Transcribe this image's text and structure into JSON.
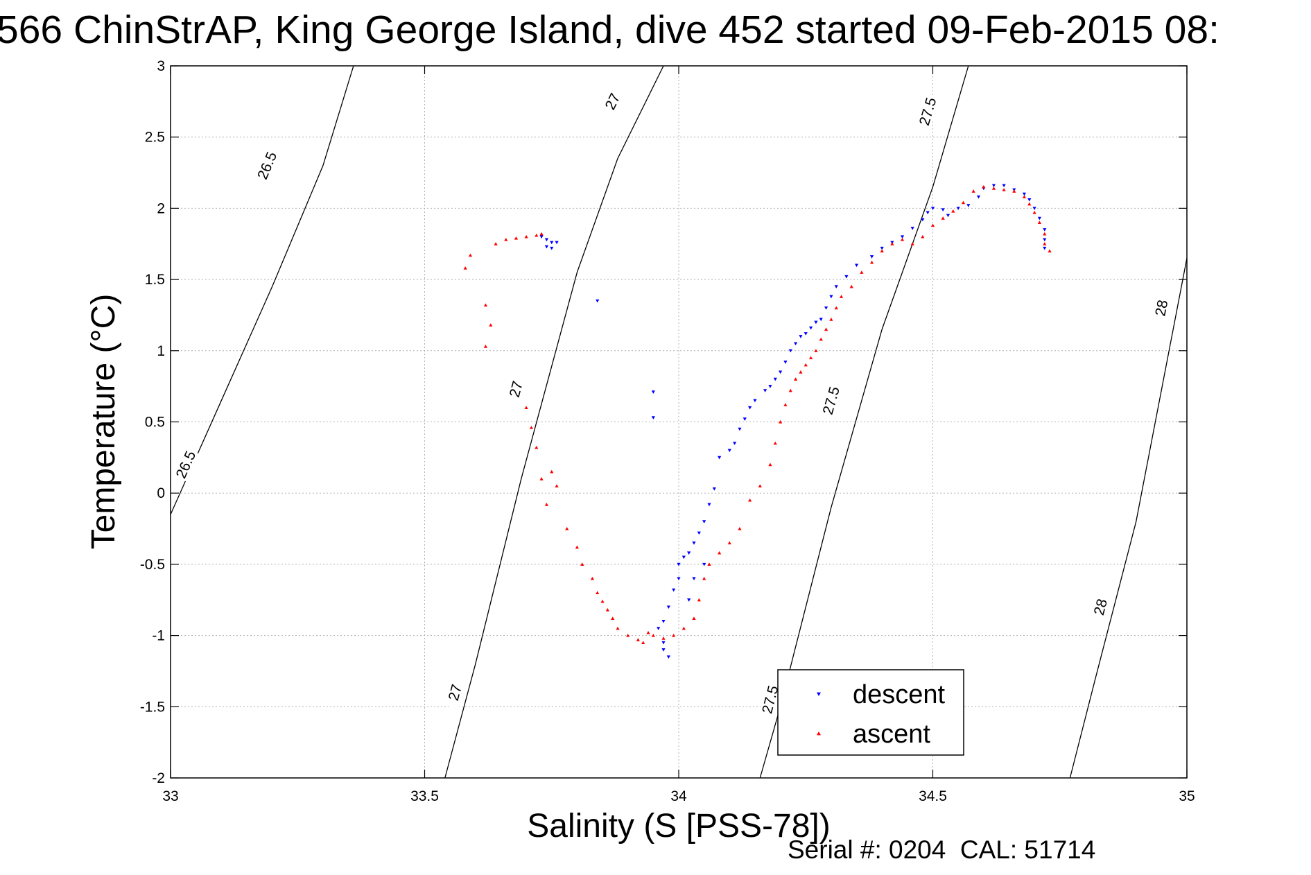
{
  "chart_data": {
    "type": "scatter",
    "title": "566 ChinStrAP, King George Island, dive 452 started 09-Feb-2015 08:",
    "xlabel": "Salinity (S [PSS-78])",
    "ylabel": "Temperature (°C)",
    "xlim": [
      33,
      35
    ],
    "ylim": [
      -2,
      3
    ],
    "x_ticks": [
      "33",
      "33.5",
      "34",
      "34.5",
      "35"
    ],
    "y_ticks": [
      "-2",
      "-1.5",
      "-1",
      "-0.5",
      "0",
      "0.5",
      "1",
      "1.5",
      "2",
      "2.5",
      "3"
    ],
    "grid": true,
    "legend_position": "lower-right",
    "footer": "Serial #: 0204  CAL: 51714",
    "density_contours": [
      {
        "label": "26.5",
        "points": [
          [
            33.0,
            -0.15
          ],
          [
            33.1,
            0.65
          ],
          [
            33.2,
            1.45
          ],
          [
            33.3,
            2.3
          ],
          [
            33.36,
            3.0
          ]
        ],
        "label_points": [
          [
            33.03,
            0.2
          ],
          [
            33.19,
            2.3
          ]
        ]
      },
      {
        "label": "27",
        "points": [
          [
            33.54,
            -2.0
          ],
          [
            33.6,
            -1.2
          ],
          [
            33.69,
            0.1
          ],
          [
            33.8,
            1.55
          ],
          [
            33.88,
            2.35
          ],
          [
            33.97,
            3.0
          ]
        ],
        "label_points": [
          [
            33.56,
            -1.4
          ],
          [
            33.68,
            0.73
          ],
          [
            33.87,
            2.75
          ]
        ]
      },
      {
        "label": "27.5",
        "points": [
          [
            34.16,
            -2.0
          ],
          [
            34.2,
            -1.5
          ],
          [
            34.3,
            -0.1
          ],
          [
            34.4,
            1.15
          ],
          [
            34.5,
            2.15
          ],
          [
            34.57,
            3.0
          ]
        ],
        "label_points": [
          [
            34.18,
            -1.45
          ],
          [
            34.3,
            0.65
          ],
          [
            34.49,
            2.68
          ]
        ]
      },
      {
        "label": "28",
        "points": [
          [
            34.77,
            -2.0
          ],
          [
            34.82,
            -1.3
          ],
          [
            34.9,
            -0.2
          ],
          [
            35.0,
            1.65
          ]
        ],
        "label_points": [
          [
            34.83,
            -0.8
          ],
          [
            34.95,
            1.3
          ]
        ]
      }
    ],
    "series": [
      {
        "name": "descent",
        "color": "#0000ff",
        "marker": "triangle-down",
        "points": [
          [
            33.73,
            1.8
          ],
          [
            33.74,
            1.78
          ],
          [
            33.75,
            1.76
          ],
          [
            33.74,
            1.73
          ],
          [
            33.75,
            1.72
          ],
          [
            33.76,
            1.76
          ],
          [
            33.84,
            1.35
          ],
          [
            33.95,
            0.71
          ],
          [
            33.95,
            0.53
          ],
          [
            33.96,
            -0.95
          ],
          [
            33.97,
            -1.05
          ],
          [
            33.98,
            -1.15
          ],
          [
            33.97,
            -1.1
          ],
          [
            33.97,
            -0.9
          ],
          [
            33.98,
            -0.8
          ],
          [
            33.99,
            -0.68
          ],
          [
            34.0,
            -0.6
          ],
          [
            34.0,
            -0.5
          ],
          [
            34.01,
            -0.45
          ],
          [
            34.02,
            -0.42
          ],
          [
            34.03,
            -0.35
          ],
          [
            34.04,
            -0.28
          ],
          [
            34.05,
            -0.2
          ],
          [
            34.06,
            -0.08
          ],
          [
            34.07,
            0.03
          ],
          [
            34.02,
            -0.75
          ],
          [
            34.03,
            -0.6
          ],
          [
            34.05,
            -0.5
          ],
          [
            34.08,
            0.25
          ],
          [
            34.1,
            0.3
          ],
          [
            34.11,
            0.35
          ],
          [
            34.12,
            0.45
          ],
          [
            34.13,
            0.52
          ],
          [
            34.14,
            0.6
          ],
          [
            34.15,
            0.65
          ],
          [
            34.17,
            0.72
          ],
          [
            34.18,
            0.75
          ],
          [
            34.19,
            0.8
          ],
          [
            34.2,
            0.85
          ],
          [
            34.21,
            0.92
          ],
          [
            34.22,
            1.0
          ],
          [
            34.23,
            1.05
          ],
          [
            34.24,
            1.1
          ],
          [
            34.25,
            1.12
          ],
          [
            34.26,
            1.16
          ],
          [
            34.27,
            1.2
          ],
          [
            34.28,
            1.22
          ],
          [
            34.29,
            1.3
          ],
          [
            34.3,
            1.38
          ],
          [
            34.31,
            1.45
          ],
          [
            34.33,
            1.52
          ],
          [
            34.35,
            1.6
          ],
          [
            34.38,
            1.66
          ],
          [
            34.4,
            1.72
          ],
          [
            34.42,
            1.76
          ],
          [
            34.44,
            1.8
          ],
          [
            34.46,
            1.86
          ],
          [
            34.48,
            1.92
          ],
          [
            34.49,
            1.97
          ],
          [
            34.5,
            2.0
          ],
          [
            34.52,
            1.99
          ],
          [
            34.53,
            1.95
          ],
          [
            34.55,
            2.0
          ],
          [
            34.57,
            2.02
          ],
          [
            34.59,
            2.08
          ],
          [
            34.6,
            2.14
          ],
          [
            34.62,
            2.16
          ],
          [
            34.64,
            2.16
          ],
          [
            34.66,
            2.13
          ],
          [
            34.68,
            2.1
          ],
          [
            34.69,
            2.06
          ],
          [
            34.7,
            2.0
          ],
          [
            34.71,
            1.93
          ],
          [
            34.72,
            1.85
          ],
          [
            34.72,
            1.78
          ],
          [
            34.72,
            1.72
          ]
        ]
      },
      {
        "name": "ascent",
        "color": "#ff0000",
        "marker": "triangle-up",
        "points": [
          [
            33.58,
            1.58
          ],
          [
            33.59,
            1.67
          ],
          [
            33.62,
            1.32
          ],
          [
            33.63,
            1.18
          ],
          [
            33.62,
            1.03
          ],
          [
            33.64,
            1.75
          ],
          [
            33.66,
            1.78
          ],
          [
            33.68,
            1.79
          ],
          [
            33.7,
            1.8
          ],
          [
            33.72,
            1.81
          ],
          [
            33.73,
            1.82
          ],
          [
            33.7,
            0.6
          ],
          [
            33.71,
            0.46
          ],
          [
            33.72,
            0.32
          ],
          [
            33.73,
            0.1
          ],
          [
            33.74,
            -0.08
          ],
          [
            33.75,
            0.15
          ],
          [
            33.76,
            0.05
          ],
          [
            33.78,
            -0.25
          ],
          [
            33.8,
            -0.38
          ],
          [
            33.81,
            -0.5
          ],
          [
            33.83,
            -0.6
          ],
          [
            33.84,
            -0.7
          ],
          [
            33.85,
            -0.76
          ],
          [
            33.86,
            -0.82
          ],
          [
            33.87,
            -0.88
          ],
          [
            33.88,
            -0.95
          ],
          [
            33.9,
            -1.0
          ],
          [
            33.92,
            -1.03
          ],
          [
            33.93,
            -1.05
          ],
          [
            33.94,
            -0.98
          ],
          [
            33.95,
            -1.0
          ],
          [
            33.97,
            -1.02
          ],
          [
            33.99,
            -1.0
          ],
          [
            34.01,
            -0.95
          ],
          [
            34.03,
            -0.88
          ],
          [
            34.04,
            -0.75
          ],
          [
            34.05,
            -0.6
          ],
          [
            34.06,
            -0.5
          ],
          [
            34.08,
            -0.42
          ],
          [
            34.1,
            -0.35
          ],
          [
            34.12,
            -0.25
          ],
          [
            34.14,
            -0.05
          ],
          [
            34.16,
            0.05
          ],
          [
            34.18,
            0.2
          ],
          [
            34.19,
            0.35
          ],
          [
            34.2,
            0.5
          ],
          [
            34.21,
            0.62
          ],
          [
            34.22,
            0.72
          ],
          [
            34.23,
            0.8
          ],
          [
            34.24,
            0.85
          ],
          [
            34.25,
            0.9
          ],
          [
            34.26,
            0.95
          ],
          [
            34.27,
            1.0
          ],
          [
            34.28,
            1.08
          ],
          [
            34.29,
            1.15
          ],
          [
            34.3,
            1.22
          ],
          [
            34.31,
            1.3
          ],
          [
            34.32,
            1.38
          ],
          [
            34.34,
            1.45
          ],
          [
            34.36,
            1.55
          ],
          [
            34.38,
            1.62
          ],
          [
            34.4,
            1.7
          ],
          [
            34.42,
            1.75
          ],
          [
            34.44,
            1.78
          ],
          [
            34.46,
            1.75
          ],
          [
            34.48,
            1.8
          ],
          [
            34.5,
            1.88
          ],
          [
            34.52,
            1.93
          ],
          [
            34.54,
            1.98
          ],
          [
            34.56,
            2.04
          ],
          [
            34.58,
            2.12
          ],
          [
            34.6,
            2.15
          ],
          [
            34.62,
            2.14
          ],
          [
            34.64,
            2.13
          ],
          [
            34.66,
            2.12
          ],
          [
            34.68,
            2.08
          ],
          [
            34.69,
            2.03
          ],
          [
            34.7,
            1.97
          ],
          [
            34.71,
            1.9
          ],
          [
            34.72,
            1.82
          ],
          [
            34.72,
            1.75
          ],
          [
            34.73,
            1.7
          ]
        ]
      }
    ]
  }
}
